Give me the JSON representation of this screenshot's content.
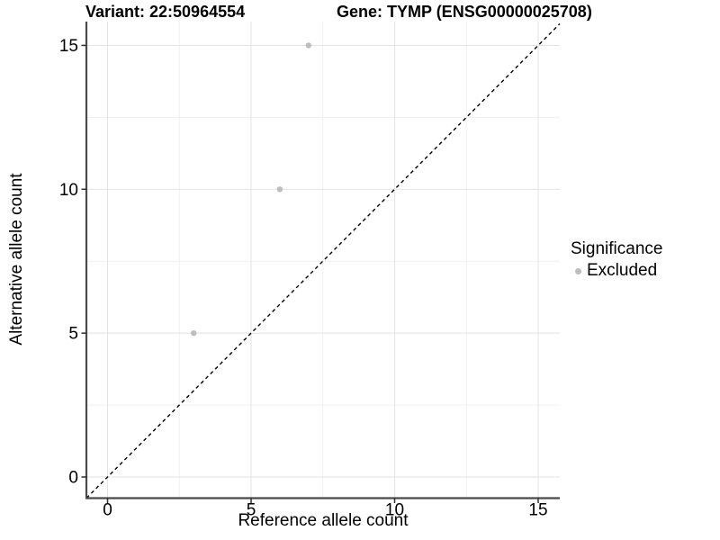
{
  "header": {
    "variant_title": "Variant: 22:50964554",
    "gene_title": "Gene: TYMP (ENSG00000025708)"
  },
  "legend": {
    "title": "Significance",
    "items": [
      {
        "label": "Excluded",
        "marker": "circle",
        "color": "#bebebe"
      }
    ]
  },
  "chart_data": {
    "type": "scatter",
    "title": "Variant: 22:50964554 / Gene: TYMP (ENSG00000025708)",
    "xlabel": "Reference allele count",
    "ylabel": "Alternative allele count",
    "xlim": [
      -0.75,
      15.75
    ],
    "ylim": [
      -0.75,
      15.85
    ],
    "x_ticks": [
      0,
      5,
      10,
      15
    ],
    "y_ticks": [
      0,
      5,
      10,
      15
    ],
    "x_minor_ticks": [
      2.5,
      7.5,
      12.5
    ],
    "y_minor_ticks": [
      2.5,
      7.5,
      12.5
    ],
    "grid": "major+minor",
    "legend_position": "right",
    "series": [
      {
        "name": "Excluded",
        "color": "#bebebe",
        "marker": "circle",
        "points": [
          [
            3,
            5
          ],
          [
            6,
            10
          ],
          [
            7,
            15
          ]
        ]
      }
    ],
    "reference_line": {
      "kind": "identity y=x",
      "style": "dashed",
      "color": "#000000"
    }
  },
  "colors": {
    "background": "#ffffff",
    "grid_major": "#e3e3e3",
    "grid_minor": "#f0f0f0",
    "axis_line": "#4a4a4a",
    "tick_mark": "#2e2e2e",
    "text": "#000000",
    "point": "#bebebe"
  }
}
